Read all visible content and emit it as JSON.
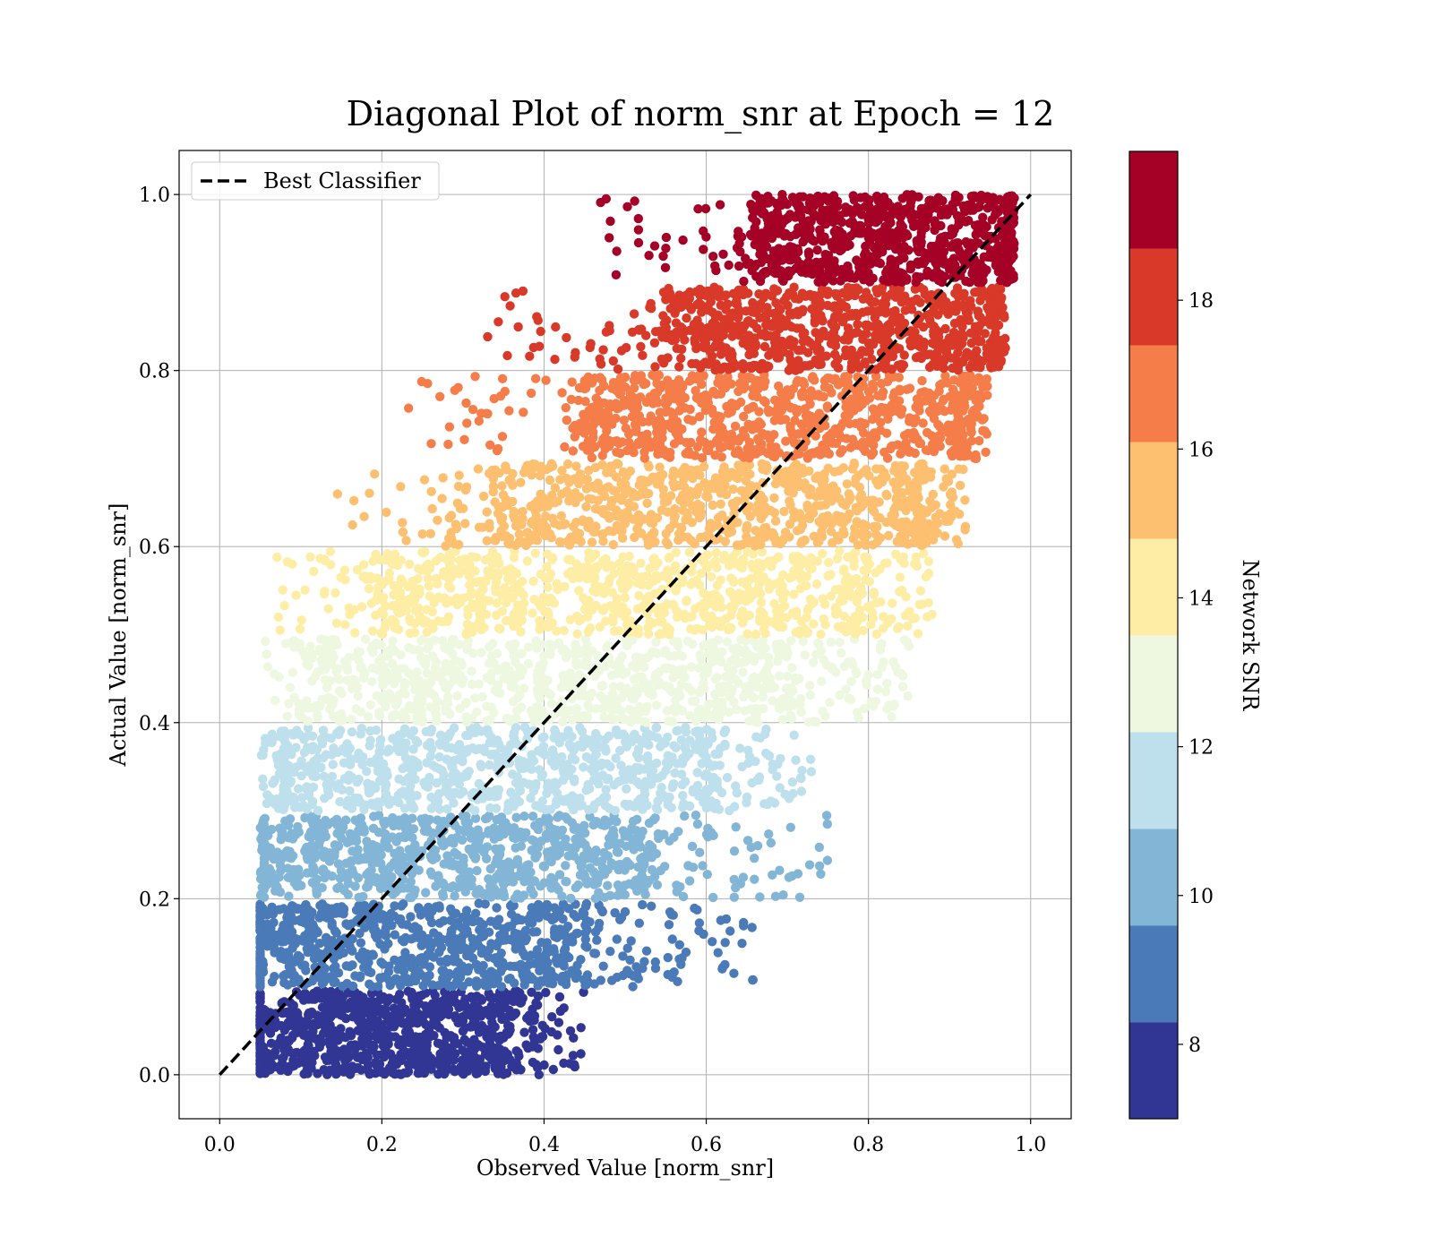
{
  "chart_data": {
    "type": "scatter",
    "title": "Diagonal Plot of norm_snr at Epoch = 12",
    "xlabel": "Observed Value [norm_snr]",
    "ylabel": "Actual Value [norm_snr]",
    "xlim": [
      -0.05,
      1.05
    ],
    "ylim": [
      -0.05,
      1.05
    ],
    "xticks": [
      "0.0",
      "0.2",
      "0.4",
      "0.6",
      "0.8",
      "1.0"
    ],
    "yticks": [
      "0.0",
      "0.2",
      "0.4",
      "0.6",
      "0.8",
      "1.0"
    ],
    "grid": true,
    "legend": {
      "placement": "upper-left",
      "entries": [
        {
          "label": "Best Classifier",
          "style": "dashed",
          "color": "#000000"
        }
      ]
    },
    "reference_line": {
      "x": [
        0.0,
        1.0
      ],
      "y": [
        0.0,
        1.0
      ],
      "style": "dashed",
      "color": "#000000"
    },
    "colorbar": {
      "title": "Network SNR",
      "range": [
        7.0,
        20.0
      ],
      "ticks": [
        "8",
        "10",
        "12",
        "14",
        "16",
        "18"
      ],
      "tick_values": [
        8,
        10,
        12,
        14,
        16,
        18
      ],
      "bins": [
        {
          "from": 7.0,
          "to": 8.3,
          "color": "#313695"
        },
        {
          "from": 8.3,
          "to": 9.6,
          "color": "#4a7ab7"
        },
        {
          "from": 9.6,
          "to": 10.9,
          "color": "#82b5d6"
        },
        {
          "from": 10.9,
          "to": 12.2,
          "color": "#bde0ec"
        },
        {
          "from": 12.2,
          "to": 13.5,
          "color": "#eef7e0"
        },
        {
          "from": 13.5,
          "to": 14.8,
          "color": "#fdeda5"
        },
        {
          "from": 14.8,
          "to": 16.1,
          "color": "#fdbf70"
        },
        {
          "from": 16.1,
          "to": 17.4,
          "color": "#f57d4a"
        },
        {
          "from": 17.4,
          "to": 18.7,
          "color": "#d93929"
        },
        {
          "from": 18.7,
          "to": 20.0,
          "color": "#a50026"
        }
      ]
    },
    "bands": [
      {
        "y_range": [
          0.0,
          0.095
        ],
        "core_x": [
          0.05,
          0.35
        ],
        "scatter_x_max": 0.45,
        "color": "#313695"
      },
      {
        "y_range": [
          0.1,
          0.195
        ],
        "core_x": [
          0.05,
          0.45
        ],
        "scatter_x_max": 0.66,
        "color": "#4a7ab7"
      },
      {
        "y_range": [
          0.2,
          0.295
        ],
        "core_x": [
          0.055,
          0.52
        ],
        "scatter_x_max": 0.75,
        "color": "#82b5d6"
      },
      {
        "y_range": [
          0.3,
          0.395
        ],
        "core_x": [
          0.08,
          0.6
        ],
        "scatter_x_max": 0.73,
        "color": "#bde0ec"
      },
      {
        "y_range": [
          0.4,
          0.495
        ],
        "core_x": [
          0.13,
          0.7
        ],
        "scatter_x_max": 0.85,
        "color": "#eef7e0"
      },
      {
        "y_range": [
          0.5,
          0.595
        ],
        "core_x": [
          0.2,
          0.78
        ],
        "scatter_x_max": 0.88,
        "color": "#fdeda5"
      },
      {
        "y_range": [
          0.6,
          0.695
        ],
        "core_x": [
          0.34,
          0.86
        ],
        "scatter_x_max": 0.92,
        "color": "#fdbf70"
      },
      {
        "y_range": [
          0.7,
          0.795
        ],
        "core_x": [
          0.45,
          0.91
        ],
        "scatter_x_max": 0.95,
        "color": "#f57d4a"
      },
      {
        "y_range": [
          0.8,
          0.895
        ],
        "core_x": [
          0.55,
          0.95
        ],
        "scatter_x_max": 0.97,
        "color": "#d93929"
      },
      {
        "y_range": [
          0.9,
          1.0
        ],
        "core_x": [
          0.66,
          0.97
        ],
        "scatter_x_max": 0.98,
        "color": "#a50026"
      }
    ]
  }
}
